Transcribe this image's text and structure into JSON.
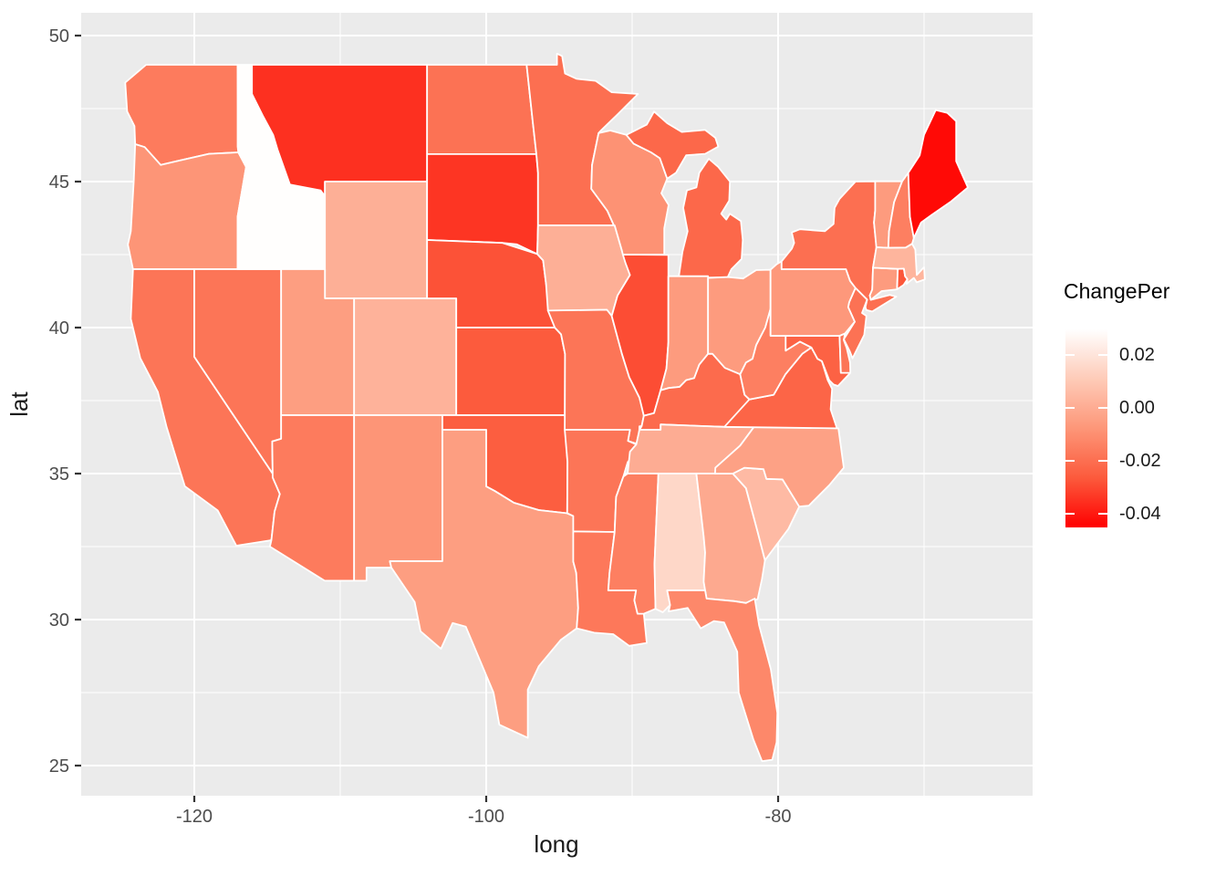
{
  "figure": {
    "background": "#FFFFFF",
    "panel_bg": "#EBEBEB",
    "grid_color": "#FFFFFF",
    "axis_text_color": "#4D4D4D",
    "axis_title_color": "#1A1A1A",
    "tick_mark_color": "#333333",
    "state_border_color": "#FFFFFF"
  },
  "axes": {
    "x": {
      "label": "long",
      "ticks": [
        {
          "value": -120,
          "label": "-120"
        },
        {
          "value": -100,
          "label": "-100"
        },
        {
          "value": -80,
          "label": "-80"
        }
      ],
      "minor_ticks": [
        -110,
        -90,
        -70
      ]
    },
    "y": {
      "label": "lat",
      "ticks": [
        {
          "value": 50,
          "label": "50"
        },
        {
          "value": 45,
          "label": "45"
        },
        {
          "value": 40,
          "label": "40"
        },
        {
          "value": 35,
          "label": "35"
        },
        {
          "value": 30,
          "label": "30"
        },
        {
          "value": 25,
          "label": "25"
        }
      ],
      "minor_ticks": [
        47.5,
        42.5,
        37.5,
        32.5,
        27.5
      ]
    }
  },
  "legend": {
    "title": "ChangePer",
    "domain": [
      -0.045,
      0.0295
    ],
    "ticks": [
      {
        "value": 0.02,
        "label": "0.02"
      },
      {
        "value": 0.0,
        "label": "0.00"
      },
      {
        "value": -0.02,
        "label": "-0.02"
      },
      {
        "value": -0.04,
        "label": "-0.04"
      }
    ],
    "gradient_stops": [
      {
        "t": 0.0,
        "color": "#FFFFFF"
      },
      {
        "t": 0.25,
        "color": "#FECBB8"
      },
      {
        "t": 0.5,
        "color": "#FD9678"
      },
      {
        "t": 0.75,
        "color": "#FC5A3C"
      },
      {
        "t": 1.0,
        "color": "#FF0000"
      }
    ]
  },
  "chart_data": {
    "type": "choropleth",
    "region": "US lower 48 states",
    "title": "",
    "xlabel": "long",
    "ylabel": "lat",
    "xlim": [
      -127.8,
      -62.6
    ],
    "ylim": [
      24.0,
      50.8
    ],
    "grid": true,
    "legend_position": "right",
    "fill_variable": "ChangePer",
    "fill_domain": [
      -0.045,
      0.0295
    ],
    "fill_scale": {
      "low": "#FF0000",
      "high": "#FFFFFF"
    },
    "states": {
      "WA": -0.016,
      "OR": -0.008,
      "CA": -0.018,
      "NV": -0.018,
      "ID": 0.029,
      "MT": -0.035,
      "WY": 0.001,
      "UT": -0.005,
      "CO": 0.002,
      "AZ": -0.016,
      "NM": -0.008,
      "ND": -0.019,
      "SD": -0.034,
      "NE": -0.028,
      "KS": -0.026,
      "OK": -0.025,
      "TX": -0.005,
      "MN": -0.02,
      "IA": 0.001,
      "MO": -0.018,
      "AR": -0.018,
      "LA": -0.017,
      "WI": -0.009,
      "IL": -0.029,
      "MI": -0.022,
      "IN": -0.006,
      "OH": -0.006,
      "KY": -0.021,
      "TN": 0.0,
      "MS": -0.015,
      "AL": 0.015,
      "GA": -0.001,
      "FL": -0.012,
      "SC": 0.005,
      "NC": -0.004,
      "VA": -0.023,
      "WV": -0.015,
      "MD": -0.024,
      "DE": -0.018,
      "NJ": -0.019,
      "PA": -0.007,
      "NY": -0.02,
      "CT": -0.006,
      "RI": -0.027,
      "VT": -0.006,
      "NH": -0.015,
      "MA": 0.003,
      "ME": -0.043
    }
  }
}
